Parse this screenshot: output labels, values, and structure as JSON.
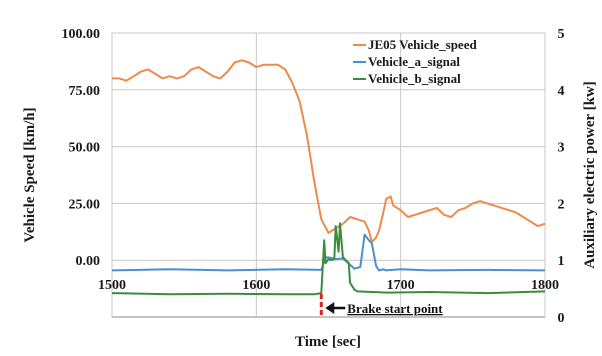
{
  "chart_data": {
    "type": "line",
    "title": "",
    "xlabel": "Time [sec]",
    "ylabel_left": "Vehicle Speed [km/h]",
    "ylabel_right": "Auxiliary electric power [kw]",
    "xlim": [
      1500,
      1800
    ],
    "ylim_left": [
      -25,
      100
    ],
    "ylim_right": [
      0,
      5
    ],
    "x_ticks": [
      1500,
      1600,
      1700,
      1800
    ],
    "x_tick_labels": [
      "1500",
      "1600",
      "1700",
      "1800"
    ],
    "y_left_ticks": [
      100,
      75,
      50,
      25,
      0
    ],
    "y_left_tick_labels": [
      "100.00",
      "75.00",
      "50.00",
      "25.00",
      "0.00"
    ],
    "y_right_ticks": [
      5,
      4,
      3,
      2,
      1,
      0
    ],
    "y_right_tick_labels": [
      "5",
      "4",
      "3",
      "2",
      "1",
      "0"
    ],
    "grid": true,
    "legend_position": "top-right",
    "series": [
      {
        "name": "JE05 Vehicle_speed",
        "axis": "left",
        "color": "#f08a4b",
        "x": [
          1500,
          1505,
          1510,
          1515,
          1520,
          1525,
          1530,
          1535,
          1540,
          1545,
          1550,
          1555,
          1560,
          1565,
          1570,
          1575,
          1580,
          1585,
          1590,
          1595,
          1600,
          1605,
          1610,
          1615,
          1620,
          1625,
          1630,
          1635,
          1640,
          1645,
          1650,
          1655,
          1660,
          1665,
          1670,
          1675,
          1678,
          1680,
          1683,
          1685,
          1688,
          1690,
          1693,
          1695,
          1700,
          1705,
          1710,
          1715,
          1720,
          1725,
          1730,
          1735,
          1740,
          1745,
          1750,
          1755,
          1760,
          1765,
          1770,
          1775,
          1780,
          1785,
          1790,
          1795,
          1800
        ],
        "y": [
          80,
          80,
          79,
          81,
          83,
          84,
          82,
          80,
          81,
          80,
          81,
          84,
          85,
          83,
          81,
          80,
          83,
          87,
          88,
          87,
          85,
          86,
          86,
          86,
          84,
          78,
          70,
          55,
          35,
          18,
          12,
          14,
          16,
          19,
          18,
          17,
          13,
          8,
          10,
          13,
          21,
          27,
          28,
          24,
          22,
          19,
          20,
          21,
          22,
          23,
          20,
          19,
          22,
          23,
          25,
          26,
          25,
          24,
          23,
          22,
          21,
          19,
          17,
          15,
          16
        ]
      },
      {
        "name": "Vehicle_a_signal",
        "axis": "right",
        "color": "#4a90d0",
        "x": [
          1500,
          1540,
          1580,
          1620,
          1645,
          1648,
          1650,
          1655,
          1660,
          1665,
          1668,
          1672,
          1675,
          1678,
          1680,
          1683,
          1685,
          1688,
          1690,
          1700,
          1720,
          1760,
          1800
        ],
        "y": [
          0.82,
          0.84,
          0.82,
          0.84,
          0.83,
          1.05,
          1.05,
          1.02,
          1.03,
          0.92,
          0.85,
          0.88,
          1.45,
          1.35,
          1.3,
          0.9,
          0.82,
          0.84,
          0.82,
          0.84,
          0.82,
          0.83,
          0.82
        ]
      },
      {
        "name": "Vehicle_b_signal",
        "axis": "right",
        "color": "#3c8c3c",
        "x": [
          1500,
          1540,
          1580,
          1620,
          1640,
          1645,
          1647,
          1648,
          1650,
          1652,
          1654,
          1655,
          1657,
          1658,
          1660,
          1662,
          1664,
          1665,
          1668,
          1670,
          1690,
          1720,
          1760,
          1800
        ],
        "y": [
          0.42,
          0.4,
          0.41,
          0.4,
          0.4,
          0.42,
          1.35,
          0.95,
          1.02,
          1.0,
          1.02,
          1.6,
          1.15,
          1.65,
          1.05,
          1.0,
          0.95,
          0.6,
          0.48,
          0.45,
          0.43,
          0.44,
          0.42,
          0.45
        ]
      }
    ],
    "annotation": {
      "text": "Brake start point",
      "x": 1645
    }
  }
}
